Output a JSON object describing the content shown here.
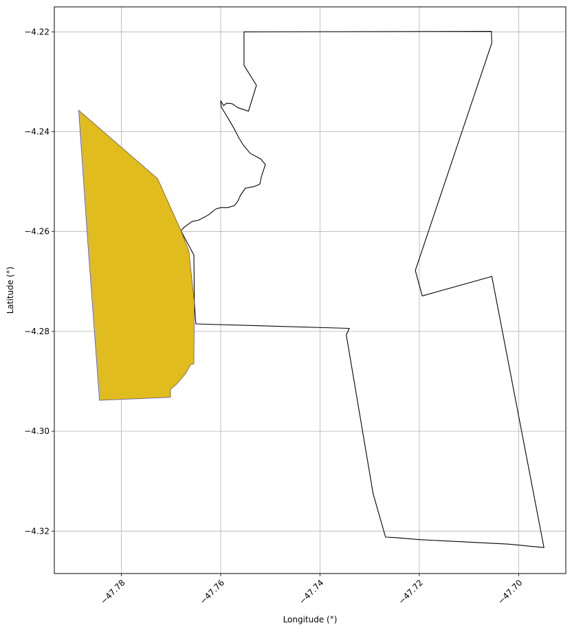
{
  "chart_data": {
    "type": "map",
    "xlabel": "Longitude (°)",
    "ylabel": "Latitude (°)",
    "xlim": [
      -47.7935,
      -47.6905
    ],
    "ylim": [
      -4.3285,
      -4.215
    ],
    "grid": true,
    "x_ticks": [
      {
        "value": -47.78,
        "label": "−47.78"
      },
      {
        "value": -47.76,
        "label": "−47.76"
      },
      {
        "value": -47.74,
        "label": "−47.74"
      },
      {
        "value": -47.72,
        "label": "−47.72"
      },
      {
        "value": -47.7,
        "label": "−47.70"
      }
    ],
    "y_ticks": [
      {
        "value": -4.22,
        "label": "−4.22"
      },
      {
        "value": -4.24,
        "label": "−4.24"
      },
      {
        "value": -4.26,
        "label": "−4.26"
      },
      {
        "value": -4.28,
        "label": "−4.28"
      },
      {
        "value": -4.3,
        "label": "−4.30"
      },
      {
        "value": -4.32,
        "label": "−4.32"
      }
    ],
    "features": [
      {
        "id": "outline-polygon",
        "fill": "none",
        "stroke": "#000000",
        "coordinates": [
          [
            -47.7553,
            -4.22
          ],
          [
            -47.7055,
            -4.2199
          ],
          [
            -47.7054,
            -4.2222
          ],
          [
            -47.7208,
            -4.2678
          ],
          [
            -47.7194,
            -4.2729
          ],
          [
            -47.7054,
            -4.269
          ],
          [
            -47.6949,
            -4.3233
          ],
          [
            -47.7021,
            -4.3226
          ],
          [
            -47.7202,
            -4.3217
          ],
          [
            -47.7249,
            -4.3213
          ],
          [
            -47.7268,
            -4.3212
          ],
          [
            -47.7293,
            -4.3125
          ],
          [
            -47.7347,
            -4.2807
          ],
          [
            -47.7341,
            -4.2794
          ],
          [
            -47.765,
            -4.2785
          ],
          [
            -47.7653,
            -4.2742
          ],
          [
            -47.7654,
            -4.2647
          ],
          [
            -47.7674,
            -4.261
          ],
          [
            -47.768,
            -4.2598
          ],
          [
            -47.7673,
            -4.2591
          ],
          [
            -47.7658,
            -4.258
          ],
          [
            -47.7644,
            -4.2577
          ],
          [
            -47.7625,
            -4.2567
          ],
          [
            -47.761,
            -4.2555
          ],
          [
            -47.76,
            -4.2552
          ],
          [
            -47.7585,
            -4.2552
          ],
          [
            -47.7572,
            -4.2548
          ],
          [
            -47.7565,
            -4.2538
          ],
          [
            -47.756,
            -4.2527
          ],
          [
            -47.755,
            -4.2513
          ],
          [
            -47.7533,
            -4.251
          ],
          [
            -47.7521,
            -4.2505
          ],
          [
            -47.7518,
            -4.249
          ],
          [
            -47.751,
            -4.2466
          ],
          [
            -47.7519,
            -4.2455
          ],
          [
            -47.7541,
            -4.2443
          ],
          [
            -47.7555,
            -4.2426
          ],
          [
            -47.7563,
            -4.2413
          ],
          [
            -47.7574,
            -4.2392
          ],
          [
            -47.7584,
            -4.2375
          ],
          [
            -47.7593,
            -4.236
          ],
          [
            -47.7599,
            -4.235
          ],
          [
            -47.76,
            -4.2338
          ],
          [
            -47.7594,
            -4.2348
          ],
          [
            -47.7588,
            -4.2343
          ],
          [
            -47.7577,
            -4.2344
          ],
          [
            -47.7565,
            -4.2352
          ],
          [
            -47.7544,
            -4.2359
          ],
          [
            -47.7528,
            -4.2307
          ],
          [
            -47.7553,
            -4.2267
          ],
          [
            -47.7553,
            -4.22
          ]
        ]
      },
      {
        "id": "filled-parcel",
        "fill": "#e0bc1f",
        "stroke": "#5a55b0",
        "coordinates": [
          [
            -47.7886,
            -4.2357
          ],
          [
            -47.7727,
            -4.2494
          ],
          [
            -47.768,
            -4.2598
          ],
          [
            -47.7664,
            -4.264
          ],
          [
            -47.7653,
            -4.2742
          ],
          [
            -47.7654,
            -4.2865
          ],
          [
            -47.766,
            -4.2866
          ],
          [
            -47.7671,
            -4.2885
          ],
          [
            -47.7689,
            -4.2906
          ],
          [
            -47.7701,
            -4.2916
          ],
          [
            -47.7701,
            -4.2932
          ],
          [
            -47.7844,
            -4.2938
          ],
          [
            -47.7867,
            -4.263
          ],
          [
            -47.7886,
            -4.2357
          ]
        ]
      }
    ]
  }
}
